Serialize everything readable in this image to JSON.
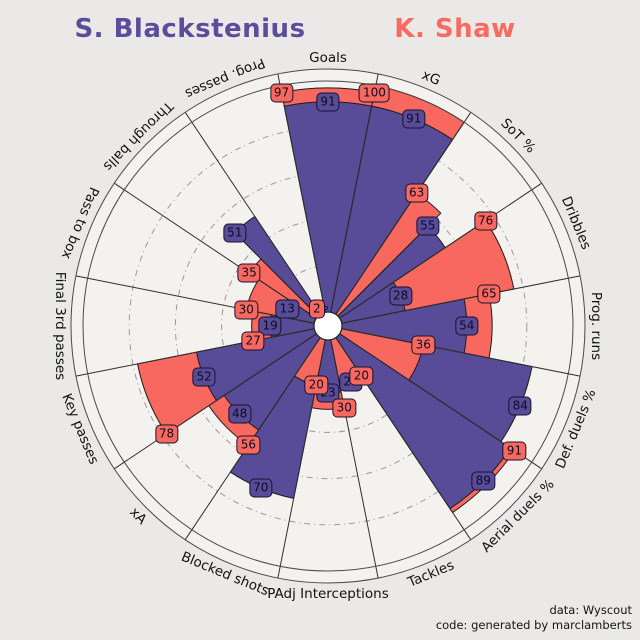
{
  "header": {
    "player1_name": "S. Blackstenius",
    "player2_name": "K. Shaw"
  },
  "colors": {
    "player1": "#5a4d9c",
    "player2": "#f8685f",
    "badge_border": "#16122e",
    "slice_fill": "#f4f2ef",
    "background": "#eae9e7",
    "gridline": "#999999",
    "boundary_line": "#2e2e2e"
  },
  "chart_data": {
    "type": "pizza-radar",
    "title": "S. Blackstenius vs K. Shaw",
    "categories": [
      "Goals",
      "xG",
      "SoT %",
      "Dribbles",
      "Prog. runs",
      "Def. duels %",
      "Aerial duels %",
      "Tackles",
      "PAdj Interceptions",
      "Blocked shots",
      "xA",
      "Key passes",
      "Final 3rd passes",
      "Pass to box",
      "Through balls",
      "Prog. passes"
    ],
    "series": [
      {
        "name": "S. Blackstenius",
        "color": "#584b98",
        "values": [
          91,
          91,
          55,
          28,
          54,
          84,
          89,
          20,
          23,
          70,
          48,
          52,
          19,
          13,
          51,
          null
        ]
      },
      {
        "name": "K. Shaw",
        "color": "#f8685f",
        "values": [
          97,
          100,
          63,
          76,
          65,
          36,
          91,
          20,
          30,
          20,
          56,
          78,
          27,
          30,
          35,
          2
        ]
      }
    ],
    "range": [
      0,
      100
    ],
    "gridlines": [
      20,
      40,
      60,
      80
    ],
    "layout": "16 slices clockwise from top; value badges at bar tips",
    "notes": "Blackstenius badge on Tackles partially occluded (shows 2x) and on Prog. passes fully occluded behind Shaw's badge"
  },
  "params": [
    {
      "label": "Goals",
      "blackstenius": 91,
      "shaw": 97,
      "layout": "overlap"
    },
    {
      "label": "xG",
      "blackstenius": 91,
      "shaw": 100,
      "layout": "overlap"
    },
    {
      "label": "SoT %",
      "blackstenius": 55,
      "shaw": 63,
      "layout": "split"
    },
    {
      "label": "Dribbles",
      "blackstenius": 28,
      "shaw": 76,
      "layout": "overlap"
    },
    {
      "label": "Prog. runs",
      "blackstenius": 54,
      "shaw": 65,
      "layout": "overlap"
    },
    {
      "label": "Def. duels %",
      "blackstenius": 84,
      "shaw": 36,
      "layout": "overlap"
    },
    {
      "label": "Aerial duels %",
      "blackstenius": 89,
      "shaw": 91,
      "layout": "overlap"
    },
    {
      "label": "Tackles",
      "blackstenius": 20,
      "shaw": 20,
      "layout": "overlap",
      "blackstenius_occluded": true
    },
    {
      "label": "PAdj Interceptions",
      "blackstenius": 23,
      "shaw": 30,
      "layout": "overlap"
    },
    {
      "label": "Blocked shots",
      "blackstenius": 70,
      "shaw": 20,
      "layout": "overlap"
    },
    {
      "label": "xA",
      "blackstenius": 48,
      "shaw": 56,
      "layout": "overlap"
    },
    {
      "label": "Key passes",
      "blackstenius": 52,
      "shaw": 78,
      "layout": "overlap"
    },
    {
      "label": "Final 3rd passes",
      "blackstenius": 19,
      "shaw": 27,
      "layout": "overlap"
    },
    {
      "label": "Pass to box",
      "blackstenius": 13,
      "shaw": 30,
      "layout": "overlap"
    },
    {
      "label": "Through balls",
      "blackstenius": 51,
      "shaw": 35,
      "layout": "split"
    },
    {
      "label": "Prog. passes",
      "blackstenius": null,
      "blackstenius_bar": 2,
      "shaw": 2,
      "layout": "overlap",
      "blackstenius_occluded": true
    }
  ],
  "footer": {
    "line1": "data: Wyscout",
    "line2": "code: generated by marclamberts"
  }
}
